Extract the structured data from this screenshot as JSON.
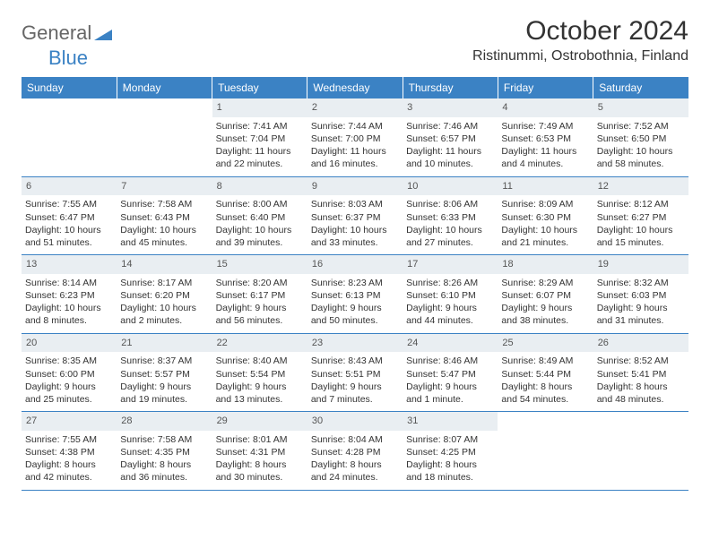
{
  "brand": {
    "part1": "General",
    "part2": "Blue"
  },
  "title": "October 2024",
  "location": "Ristinummi, Ostrobothnia, Finland",
  "theme": {
    "header_bg": "#3b82c4",
    "header_text": "#ffffff",
    "daynum_bg": "#e9eef2",
    "row_border": "#3b82c4",
    "page_bg": "#ffffff",
    "text_color": "#333333"
  },
  "weekdays": [
    "Sunday",
    "Monday",
    "Tuesday",
    "Wednesday",
    "Thursday",
    "Friday",
    "Saturday"
  ],
  "weeks": [
    [
      null,
      null,
      {
        "num": "1",
        "sunrise": "Sunrise: 7:41 AM",
        "sunset": "Sunset: 7:04 PM",
        "day1": "Daylight: 11 hours",
        "day2": "and 22 minutes."
      },
      {
        "num": "2",
        "sunrise": "Sunrise: 7:44 AM",
        "sunset": "Sunset: 7:00 PM",
        "day1": "Daylight: 11 hours",
        "day2": "and 16 minutes."
      },
      {
        "num": "3",
        "sunrise": "Sunrise: 7:46 AM",
        "sunset": "Sunset: 6:57 PM",
        "day1": "Daylight: 11 hours",
        "day2": "and 10 minutes."
      },
      {
        "num": "4",
        "sunrise": "Sunrise: 7:49 AM",
        "sunset": "Sunset: 6:53 PM",
        "day1": "Daylight: 11 hours",
        "day2": "and 4 minutes."
      },
      {
        "num": "5",
        "sunrise": "Sunrise: 7:52 AM",
        "sunset": "Sunset: 6:50 PM",
        "day1": "Daylight: 10 hours",
        "day2": "and 58 minutes."
      }
    ],
    [
      {
        "num": "6",
        "sunrise": "Sunrise: 7:55 AM",
        "sunset": "Sunset: 6:47 PM",
        "day1": "Daylight: 10 hours",
        "day2": "and 51 minutes."
      },
      {
        "num": "7",
        "sunrise": "Sunrise: 7:58 AM",
        "sunset": "Sunset: 6:43 PM",
        "day1": "Daylight: 10 hours",
        "day2": "and 45 minutes."
      },
      {
        "num": "8",
        "sunrise": "Sunrise: 8:00 AM",
        "sunset": "Sunset: 6:40 PM",
        "day1": "Daylight: 10 hours",
        "day2": "and 39 minutes."
      },
      {
        "num": "9",
        "sunrise": "Sunrise: 8:03 AM",
        "sunset": "Sunset: 6:37 PM",
        "day1": "Daylight: 10 hours",
        "day2": "and 33 minutes."
      },
      {
        "num": "10",
        "sunrise": "Sunrise: 8:06 AM",
        "sunset": "Sunset: 6:33 PM",
        "day1": "Daylight: 10 hours",
        "day2": "and 27 minutes."
      },
      {
        "num": "11",
        "sunrise": "Sunrise: 8:09 AM",
        "sunset": "Sunset: 6:30 PM",
        "day1": "Daylight: 10 hours",
        "day2": "and 21 minutes."
      },
      {
        "num": "12",
        "sunrise": "Sunrise: 8:12 AM",
        "sunset": "Sunset: 6:27 PM",
        "day1": "Daylight: 10 hours",
        "day2": "and 15 minutes."
      }
    ],
    [
      {
        "num": "13",
        "sunrise": "Sunrise: 8:14 AM",
        "sunset": "Sunset: 6:23 PM",
        "day1": "Daylight: 10 hours",
        "day2": "and 8 minutes."
      },
      {
        "num": "14",
        "sunrise": "Sunrise: 8:17 AM",
        "sunset": "Sunset: 6:20 PM",
        "day1": "Daylight: 10 hours",
        "day2": "and 2 minutes."
      },
      {
        "num": "15",
        "sunrise": "Sunrise: 8:20 AM",
        "sunset": "Sunset: 6:17 PM",
        "day1": "Daylight: 9 hours",
        "day2": "and 56 minutes."
      },
      {
        "num": "16",
        "sunrise": "Sunrise: 8:23 AM",
        "sunset": "Sunset: 6:13 PM",
        "day1": "Daylight: 9 hours",
        "day2": "and 50 minutes."
      },
      {
        "num": "17",
        "sunrise": "Sunrise: 8:26 AM",
        "sunset": "Sunset: 6:10 PM",
        "day1": "Daylight: 9 hours",
        "day2": "and 44 minutes."
      },
      {
        "num": "18",
        "sunrise": "Sunrise: 8:29 AM",
        "sunset": "Sunset: 6:07 PM",
        "day1": "Daylight: 9 hours",
        "day2": "and 38 minutes."
      },
      {
        "num": "19",
        "sunrise": "Sunrise: 8:32 AM",
        "sunset": "Sunset: 6:03 PM",
        "day1": "Daylight: 9 hours",
        "day2": "and 31 minutes."
      }
    ],
    [
      {
        "num": "20",
        "sunrise": "Sunrise: 8:35 AM",
        "sunset": "Sunset: 6:00 PM",
        "day1": "Daylight: 9 hours",
        "day2": "and 25 minutes."
      },
      {
        "num": "21",
        "sunrise": "Sunrise: 8:37 AM",
        "sunset": "Sunset: 5:57 PM",
        "day1": "Daylight: 9 hours",
        "day2": "and 19 minutes."
      },
      {
        "num": "22",
        "sunrise": "Sunrise: 8:40 AM",
        "sunset": "Sunset: 5:54 PM",
        "day1": "Daylight: 9 hours",
        "day2": "and 13 minutes."
      },
      {
        "num": "23",
        "sunrise": "Sunrise: 8:43 AM",
        "sunset": "Sunset: 5:51 PM",
        "day1": "Daylight: 9 hours",
        "day2": "and 7 minutes."
      },
      {
        "num": "24",
        "sunrise": "Sunrise: 8:46 AM",
        "sunset": "Sunset: 5:47 PM",
        "day1": "Daylight: 9 hours",
        "day2": "and 1 minute."
      },
      {
        "num": "25",
        "sunrise": "Sunrise: 8:49 AM",
        "sunset": "Sunset: 5:44 PM",
        "day1": "Daylight: 8 hours",
        "day2": "and 54 minutes."
      },
      {
        "num": "26",
        "sunrise": "Sunrise: 8:52 AM",
        "sunset": "Sunset: 5:41 PM",
        "day1": "Daylight: 8 hours",
        "day2": "and 48 minutes."
      }
    ],
    [
      {
        "num": "27",
        "sunrise": "Sunrise: 7:55 AM",
        "sunset": "Sunset: 4:38 PM",
        "day1": "Daylight: 8 hours",
        "day2": "and 42 minutes."
      },
      {
        "num": "28",
        "sunrise": "Sunrise: 7:58 AM",
        "sunset": "Sunset: 4:35 PM",
        "day1": "Daylight: 8 hours",
        "day2": "and 36 minutes."
      },
      {
        "num": "29",
        "sunrise": "Sunrise: 8:01 AM",
        "sunset": "Sunset: 4:31 PM",
        "day1": "Daylight: 8 hours",
        "day2": "and 30 minutes."
      },
      {
        "num": "30",
        "sunrise": "Sunrise: 8:04 AM",
        "sunset": "Sunset: 4:28 PM",
        "day1": "Daylight: 8 hours",
        "day2": "and 24 minutes."
      },
      {
        "num": "31",
        "sunrise": "Sunrise: 8:07 AM",
        "sunset": "Sunset: 4:25 PM",
        "day1": "Daylight: 8 hours",
        "day2": "and 18 minutes."
      },
      null,
      null
    ]
  ]
}
